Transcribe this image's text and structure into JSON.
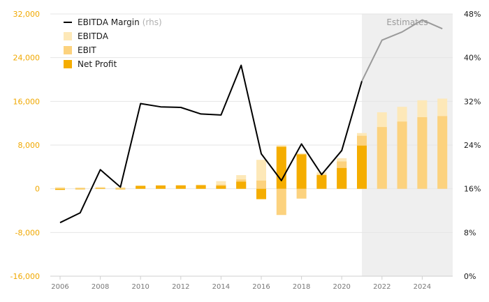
{
  "chart_data": {
    "type": "bar",
    "x": [
      2006,
      2007,
      2008,
      2009,
      2010,
      2011,
      2012,
      2013,
      2014,
      2015,
      2016,
      2017,
      2018,
      2019,
      2020,
      2021,
      2022,
      2023,
      2024,
      2025
    ],
    "series": [
      {
        "name": "EBITDA",
        "type": "bar",
        "axis": "left",
        "values": [
          300,
          250,
          350,
          300,
          500,
          650,
          700,
          750,
          1400,
          2500,
          5300,
          8000,
          6500,
          3000,
          5600,
          10200,
          14000,
          15000,
          16200,
          16500
        ]
      },
      {
        "name": "EBIT",
        "type": "bar",
        "axis": "left",
        "values": [
          100,
          100,
          150,
          100,
          450,
          600,
          620,
          620,
          750,
          1700,
          1500,
          -4800,
          -1800,
          2600,
          5000,
          9700,
          11300,
          12300,
          13100,
          13300
        ]
      },
      {
        "name": "Net Profit",
        "type": "bar",
        "axis": "left",
        "values": [
          -200,
          0,
          100,
          -50,
          550,
          600,
          600,
          650,
          550,
          1300,
          -1900,
          7700,
          6300,
          2500,
          3800,
          7900,
          null,
          null,
          null,
          null
        ]
      },
      {
        "name": "EBITDA Margin",
        "type": "line",
        "axis": "right",
        "values": [
          9.8,
          11.6,
          19.5,
          16.3,
          31.6,
          31.0,
          30.9,
          29.7,
          29.5,
          38.6,
          22.4,
          17.5,
          24.2,
          18.6,
          23.0,
          35.7,
          43.2,
          44.7,
          46.9,
          45.3
        ]
      }
    ],
    "estimates_from": 2021,
    "estimates_label": "Estimates",
    "ylim_left": [
      -16000,
      32000
    ],
    "yticks_left": [
      "32,000",
      "24,000",
      "16,000",
      "8,000",
      "0",
      "-8,000",
      "-16,000"
    ],
    "ylim_right": [
      0,
      48
    ],
    "yticks_right": [
      "48%",
      "40%",
      "32%",
      "24%",
      "16%",
      "8%",
      "0%"
    ],
    "xticks": [
      "2006",
      "2008",
      "2010",
      "2012",
      "2014",
      "2016",
      "2018",
      "2020",
      "2022",
      "2024"
    ],
    "legend": {
      "position": "top-left",
      "items": [
        {
          "label": "EBITDA Margin",
          "sublabel": "(rhs)",
          "kind": "line"
        },
        {
          "label": "EBITDA",
          "kind": "bar"
        },
        {
          "label": "EBIT",
          "kind": "bar"
        },
        {
          "label": "Net Profit",
          "kind": "bar"
        }
      ]
    },
    "colors": {
      "ebitda": "#fde8b8",
      "ebit": "#fcd27e",
      "net_profit": "#f5ad00",
      "margin_line": "#000000",
      "margin_line_estimate": "#9a9a9a",
      "estimate_shade": "#efefef",
      "grid": "#e6e6e6",
      "left_axis_text": "#f0a800"
    },
    "grid": true
  }
}
